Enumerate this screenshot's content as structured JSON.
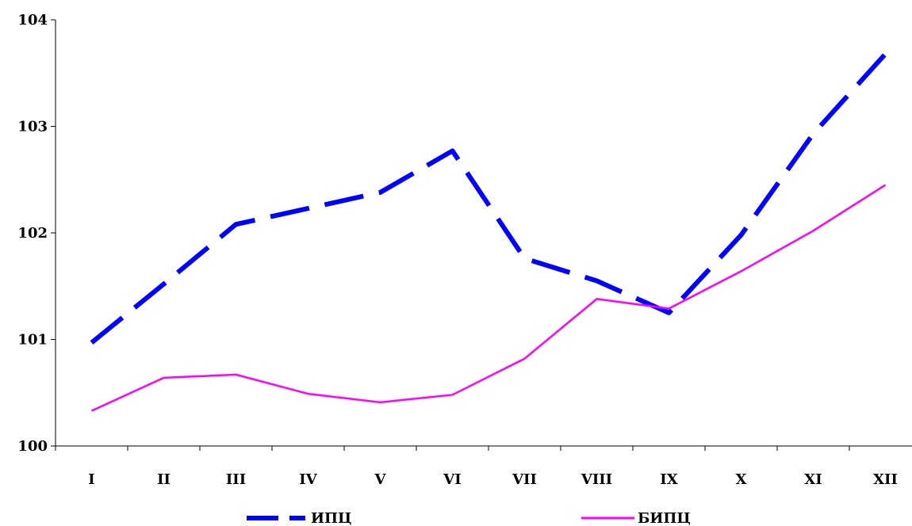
{
  "chart_data": {
    "type": "line",
    "title": "",
    "xlabel": "",
    "ylabel": "",
    "categories": [
      "I",
      "II",
      "III",
      "IV",
      "V",
      "VI",
      "VII",
      "VIII",
      "IX",
      "X",
      "XI",
      "XII"
    ],
    "ylim": [
      100,
      104
    ],
    "yticks": [
      "100",
      "101",
      "102",
      "103",
      "104"
    ],
    "grid": false,
    "legend": "bottom",
    "series": [
      {
        "name": "ИПЦ",
        "style": "dashed",
        "color": "#0000ff",
        "values": [
          100.97,
          101.52,
          102.08,
          102.23,
          102.38,
          102.77,
          101.76,
          101.55,
          101.25,
          101.98,
          102.93,
          103.68
        ]
      },
      {
        "name": "БИПЦ",
        "style": "solid",
        "color": "#ff00ff",
        "values": [
          100.33,
          100.64,
          100.67,
          100.49,
          100.41,
          100.48,
          100.82,
          101.38,
          101.29,
          101.64,
          102.02,
          102.45
        ]
      }
    ]
  }
}
